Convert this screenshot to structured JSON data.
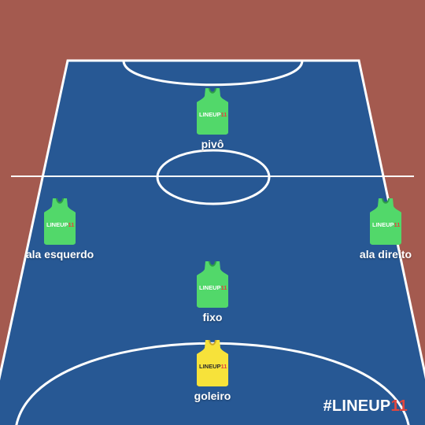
{
  "colors": {
    "background": "#a45a4f",
    "court": "#275894",
    "lines": "#ffffff",
    "field_jersey": "#52d86a",
    "field_jersey_dark": "#2f9e48",
    "goalkeeper_jersey": "#f7e23a",
    "goalkeeper_jersey_dark": "#c9a52a",
    "accent": "#e0463e"
  },
  "players": [
    {
      "role": "pivo",
      "label": "pivô",
      "jersey": "field",
      "jersey_text": "LINEUP",
      "jersey_number": "11"
    },
    {
      "role": "ala-esquerdo",
      "label": "ala esquerdo",
      "jersey": "field",
      "jersey_text": "LINEUP",
      "jersey_number": "11"
    },
    {
      "role": "ala-direito",
      "label": "ala direito",
      "jersey": "field",
      "jersey_text": "LINEUP",
      "jersey_number": "11"
    },
    {
      "role": "fixo",
      "label": "fixo",
      "jersey": "field",
      "jersey_text": "LINEUP",
      "jersey_number": "11"
    },
    {
      "role": "goleiro",
      "label": "goleiro",
      "jersey": "goalkeeper",
      "jersey_text": "LINEUP",
      "jersey_number": "11"
    }
  ],
  "brand": {
    "prefix": "#LINEUP",
    "suffix": "11"
  }
}
